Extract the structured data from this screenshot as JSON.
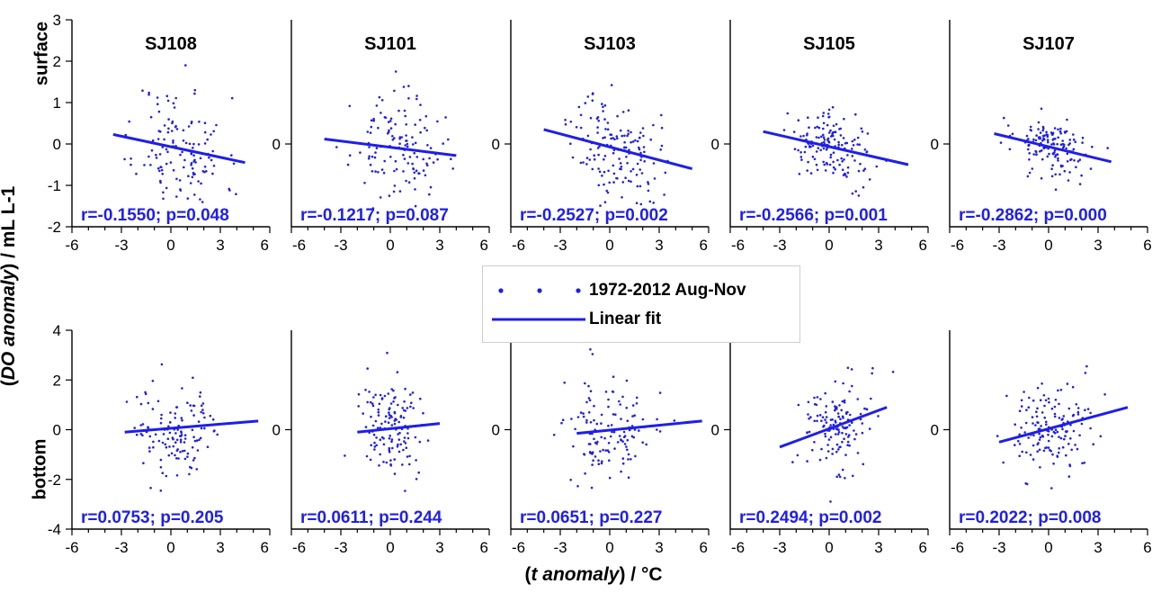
{
  "chart_data": {
    "type": "scatter",
    "ylabel_italic": "DO anomaly",
    "ylabel_rest": " / mL L-1",
    "xlabel_italic": "t anomaly",
    "xlabel_rest": " / °C",
    "row_labels": [
      "surface",
      "bottom"
    ],
    "legend": {
      "series_label": "1972-2012 Aug-Nov",
      "fit_label": "Linear fit"
    },
    "colors": {
      "series": "#1f1fe8",
      "axis": "#000000"
    },
    "xlim": [
      -6,
      6
    ],
    "x_ticks": [
      -6,
      -3,
      0,
      3,
      6
    ],
    "panels": [
      {
        "row": 0,
        "station": "SJ108",
        "ylim": [
          -2,
          3
        ],
        "y_ticks": [
          -2,
          -1,
          0,
          1,
          2,
          3
        ],
        "stats": "r=-0.1550; p=0.048",
        "fit": {
          "x": [
            -3.5,
            4.5
          ],
          "y": [
            0.23,
            -0.45
          ]
        },
        "n": 130,
        "spread": [
          1.35,
          0.6
        ],
        "y_sd": 0.75,
        "seed": 11
      },
      {
        "row": 0,
        "station": "SJ101",
        "ylim": [
          -2,
          3
        ],
        "y_ticks": [
          0
        ],
        "stats": "r=-0.1217; p=0.087",
        "fit": {
          "x": [
            -4.0,
            4.0
          ],
          "y": [
            0.12,
            -0.28
          ]
        },
        "n": 130,
        "spread": [
          1.35,
          0.4
        ],
        "y_sd": 0.6,
        "seed": 23
      },
      {
        "row": 0,
        "station": "SJ103",
        "ylim": [
          -2,
          3
        ],
        "y_ticks": [
          0
        ],
        "stats": "r=-0.2527; p=0.002",
        "fit": {
          "x": [
            -4.0,
            5.0
          ],
          "y": [
            0.35,
            -0.6
          ]
        },
        "n": 150,
        "spread": [
          1.3,
          0.4
        ],
        "y_sd": 0.62,
        "seed": 37
      },
      {
        "row": 0,
        "station": "SJ105",
        "ylim": [
          -2,
          3
        ],
        "y_ticks": [
          0
        ],
        "stats": "r=-0.2566; p=0.001",
        "fit": {
          "x": [
            -4.0,
            4.8
          ],
          "y": [
            0.3,
            -0.5
          ]
        },
        "n": 150,
        "spread": [
          1.25,
          0.2
        ],
        "y_sd": 0.4,
        "seed": 41
      },
      {
        "row": 0,
        "station": "SJ107",
        "ylim": [
          -2,
          3
        ],
        "y_ticks": [
          0
        ],
        "stats": "r=-0.2862; p=0.000",
        "fit": {
          "x": [
            -3.3,
            3.8
          ],
          "y": [
            0.25,
            -0.43
          ]
        },
        "n": 150,
        "spread": [
          1.2,
          0.3
        ],
        "y_sd": 0.35,
        "seed": 53
      },
      {
        "row": 1,
        "station": "",
        "ylim": [
          -4,
          4
        ],
        "y_ticks": [
          -4,
          -2,
          0,
          2,
          4
        ],
        "stats": "r=0.0753; p=0.205",
        "fit": {
          "x": [
            -2.8,
            5.3
          ],
          "y": [
            -0.1,
            0.35
          ]
        },
        "n": 130,
        "spread": [
          1.3,
          0.2
        ],
        "y_sd": 1.05,
        "seed": 61
      },
      {
        "row": 1,
        "station": "",
        "ylim": [
          -4,
          4
        ],
        "y_ticks": [
          0
        ],
        "stats": "r=0.0611; p=0.244",
        "fit": {
          "x": [
            -2.0,
            3.0
          ],
          "y": [
            -0.1,
            0.25
          ]
        },
        "n": 140,
        "spread": [
          1.0,
          0.2
        ],
        "y_sd": 1.0,
        "seed": 73
      },
      {
        "row": 1,
        "station": "",
        "ylim": [
          -4,
          4
        ],
        "y_ticks": [
          0
        ],
        "stats": "r=0.0651; p=0.227",
        "fit": {
          "x": [
            -2.0,
            5.6
          ],
          "y": [
            -0.15,
            0.35
          ]
        },
        "n": 130,
        "spread": [
          1.4,
          0.1
        ],
        "y_sd": 1.1,
        "seed": 89
      },
      {
        "row": 1,
        "station": "",
        "ylim": [
          -4,
          4
        ],
        "y_ticks": [
          0
        ],
        "stats": "r=0.2494; p=0.002",
        "fit": {
          "x": [
            -3.0,
            3.5
          ],
          "y": [
            -0.7,
            0.9
          ]
        },
        "n": 140,
        "spread": [
          1.2,
          0.2
        ],
        "y_sd": 1.0,
        "seed": 97
      },
      {
        "row": 1,
        "station": "",
        "ylim": [
          -4,
          4
        ],
        "y_ticks": [
          0
        ],
        "stats": "r=0.2022; p=0.008",
        "fit": {
          "x": [
            -3.0,
            4.8
          ],
          "y": [
            -0.5,
            0.9
          ]
        },
        "n": 150,
        "spread": [
          1.3,
          0.1
        ],
        "y_sd": 0.9,
        "seed": 101
      }
    ]
  }
}
